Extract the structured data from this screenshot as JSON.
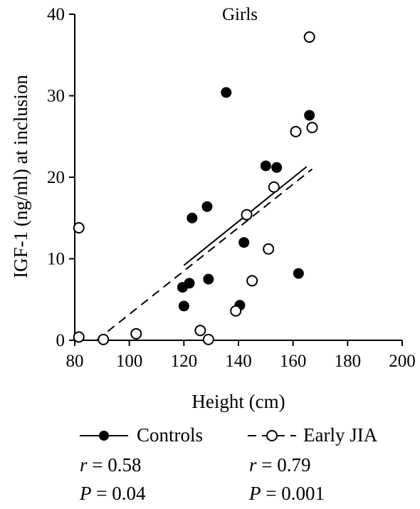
{
  "chart_data": {
    "type": "scatter",
    "title": "Girls",
    "xlabel": "Height (cm)",
    "ylabel": "IGF-1 (ng/ml) at inclusion",
    "xlim": [
      80,
      200
    ],
    "ylim": [
      0,
      40
    ],
    "xticks": [
      80,
      100,
      120,
      140,
      160,
      180,
      200
    ],
    "yticks": [
      0,
      10,
      20,
      30,
      40
    ],
    "grid": false,
    "legend_position": "bottom",
    "series": [
      {
        "name": "Controls",
        "marker": "filled-circle",
        "line_style": "solid",
        "points": [
          {
            "x": 119.5,
            "y": 6.5
          },
          {
            "x": 120,
            "y": 4.2
          },
          {
            "x": 122,
            "y": 7.0
          },
          {
            "x": 123,
            "y": 15.0
          },
          {
            "x": 128.5,
            "y": 16.4
          },
          {
            "x": 129,
            "y": 7.5
          },
          {
            "x": 135.5,
            "y": 30.4
          },
          {
            "x": 140.5,
            "y": 4.3
          },
          {
            "x": 142,
            "y": 12.0
          },
          {
            "x": 150,
            "y": 21.4
          },
          {
            "x": 154,
            "y": 21.2
          },
          {
            "x": 162,
            "y": 8.2
          },
          {
            "x": 166,
            "y": 27.6
          }
        ],
        "fit": {
          "x": [
            120,
            165
          ],
          "y": [
            9.2,
            21.3
          ]
        },
        "stat_r": "0.58",
        "stat_p": "0.04"
      },
      {
        "name": "Early JIA",
        "marker": "open-circle",
        "line_style": "dashed",
        "points": [
          {
            "x": 81.5,
            "y": 13.8
          },
          {
            "x": 81.5,
            "y": 0.4
          },
          {
            "x": 90.5,
            "y": 0.1
          },
          {
            "x": 102.5,
            "y": 0.8
          },
          {
            "x": 126,
            "y": 1.2
          },
          {
            "x": 129,
            "y": 0.1
          },
          {
            "x": 139,
            "y": 3.6
          },
          {
            "x": 143,
            "y": 15.4
          },
          {
            "x": 145,
            "y": 7.3
          },
          {
            "x": 151,
            "y": 11.2
          },
          {
            "x": 153,
            "y": 18.8
          },
          {
            "x": 161,
            "y": 25.6
          },
          {
            "x": 166,
            "y": 37.2
          },
          {
            "x": 167,
            "y": 26.1
          }
        ],
        "fit": {
          "x": [
            88,
            167
          ],
          "y": [
            0,
            21.0
          ]
        },
        "stat_r": "0.79",
        "stat_p": "0.001"
      }
    ]
  },
  "stats_labels": {
    "r": "r",
    "p": "P",
    "eq": " = "
  }
}
